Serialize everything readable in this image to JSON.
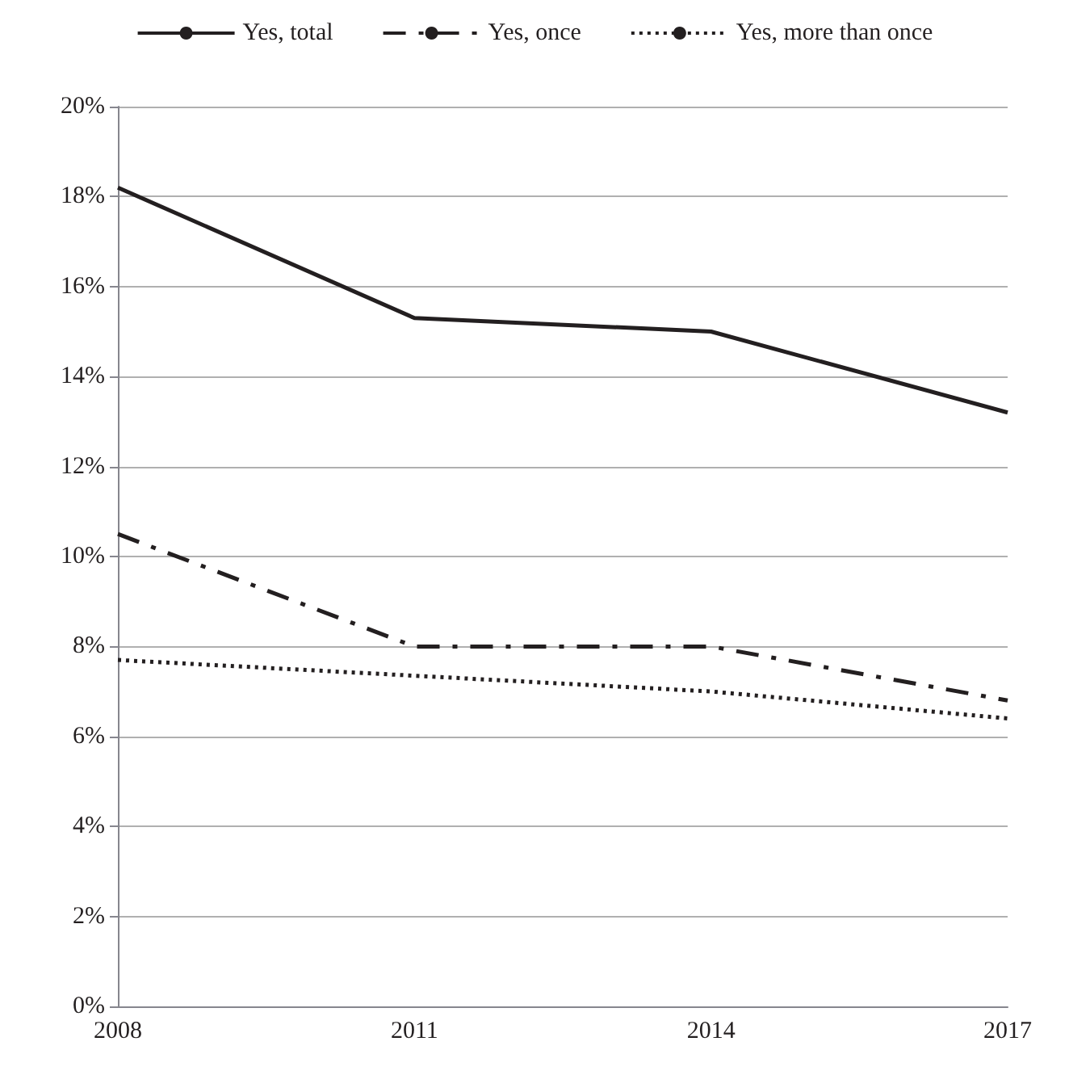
{
  "chart_data": {
    "type": "line",
    "categories": [
      "2008",
      "2011",
      "2014",
      "2017"
    ],
    "series": [
      {
        "name": "Yes, total",
        "color": "#231f20",
        "line_style": "solid",
        "values": [
          18.2,
          15.3,
          15.0,
          13.2
        ]
      },
      {
        "name": "Yes, once",
        "color": "#231f20",
        "line_style": "dashed",
        "values": [
          10.5,
          8.0,
          8.0,
          6.8
        ]
      },
      {
        "name": "Yes, more than once",
        "color": "#231f20",
        "line_style": "dotted",
        "values": [
          7.7,
          7.35,
          7.0,
          6.4
        ]
      }
    ],
    "ylim": [
      0,
      20
    ],
    "yticks": [
      {
        "value": 0,
        "label": "0%"
      },
      {
        "value": 2,
        "label": "2%"
      },
      {
        "value": 4,
        "label": "4%"
      },
      {
        "value": 6,
        "label": "6%"
      },
      {
        "value": 8,
        "label": "8%"
      },
      {
        "value": 10,
        "label": "10%"
      },
      {
        "value": 12,
        "label": "12%"
      },
      {
        "value": 14,
        "label": "14%"
      },
      {
        "value": 16,
        "label": "16%"
      },
      {
        "value": 18,
        "label": "18%"
      },
      {
        "value": 20,
        "label": "20%"
      }
    ],
    "grid": "y",
    "legend": "top",
    "marker": "none"
  }
}
